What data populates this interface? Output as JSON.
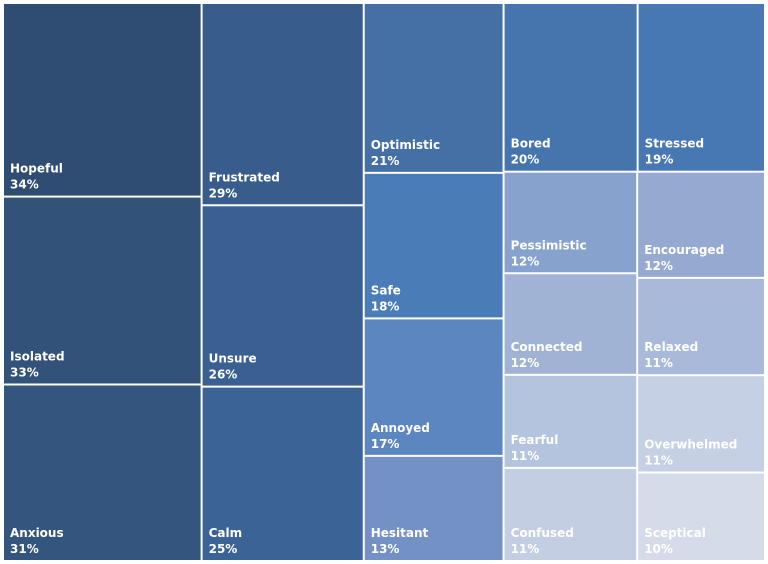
{
  "chart_data": {
    "type": "treemap",
    "categories": [
      "Hopeful",
      "Isolated",
      "Anxious",
      "Frustrated",
      "Unsure",
      "Calm",
      "Optimistic",
      "Bored",
      "Stressed",
      "Safe",
      "Annoyed",
      "Hesitant",
      "Pessimistic",
      "Encouraged",
      "Connected",
      "Relaxed",
      "Fearful",
      "Overwhelmed",
      "Confused",
      "Sceptical"
    ],
    "values": [
      34,
      33,
      31,
      29,
      26,
      25,
      21,
      20,
      19,
      18,
      17,
      13,
      12,
      12,
      12,
      11,
      11,
      11,
      11,
      10
    ],
    "value_labels": [
      "34%",
      "33%",
      "31%",
      "29%",
      "26%",
      "25%",
      "21%",
      "20%",
      "19%",
      "18%",
      "17%",
      "13%",
      "12%",
      "12%",
      "12%",
      "11%",
      "11%",
      "11%",
      "11%",
      "10%"
    ],
    "colors": [
      "#2f4d72",
      "#325279",
      "#34557d",
      "#385d8d",
      "#3a6091",
      "#3c6396",
      "#4470a6",
      "#4675ae",
      "#4878b3",
      "#4a7cb8",
      "#5b86c0",
      "#7391c4",
      "#87a2cc",
      "#95a9d1",
      "#a0b3d5",
      "#a9b9da",
      "#b4c3de",
      "#c5d0e5",
      "#c3cee3",
      "#d5dbe9"
    ]
  }
}
